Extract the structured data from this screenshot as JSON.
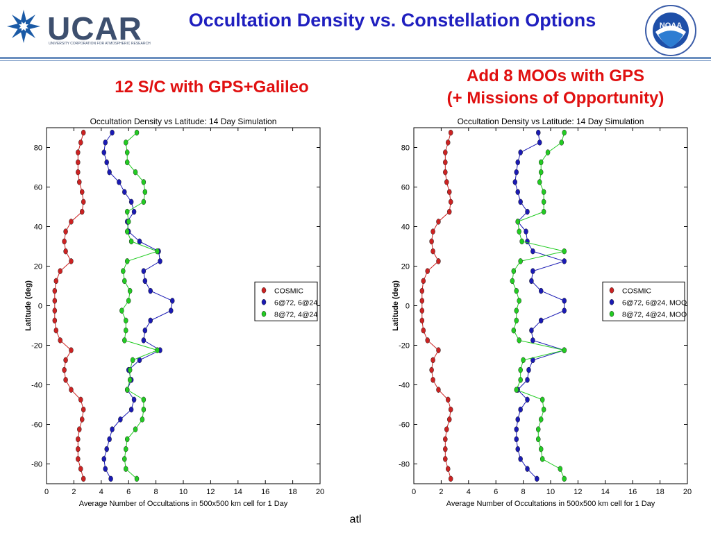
{
  "header": {
    "ucar_logo_text": "UCAR",
    "ucar_logo_subtext": "UNIVERSITY CORPORATION FOR ATMOSPHERIC RESEARCH",
    "title": "Occultation Density vs. Constellation Options",
    "noaa_logo_text": "NOAA",
    "colors": {
      "title": "#1f1fbf",
      "subtitle": "#e01010",
      "rule": "#6b8fbf"
    }
  },
  "subtitles": {
    "left": "12 S/C with GPS+Galileo",
    "right_line1": "Add 8 MOOs with GPS",
    "right_line2": "(+ Missions of Opportunity)"
  },
  "footer": {
    "text": "atl"
  },
  "chart_data": [
    {
      "type": "line",
      "title": "Occultation Density vs Latitude: 14 Day Simulation",
      "xlabel": "Average Number of Occultations in 500x500 km cell for 1 Day",
      "ylabel": "Latitude (deg)",
      "xlim": [
        0,
        20
      ],
      "ylim": [
        -90,
        90
      ],
      "xticks": [
        0,
        2,
        4,
        6,
        8,
        10,
        12,
        14,
        16,
        18,
        20
      ],
      "yticks": [
        -80,
        -60,
        -40,
        -20,
        0,
        20,
        40,
        60,
        80
      ],
      "legend_position": "right",
      "latitudes": [
        87.5,
        82.5,
        77.5,
        72.5,
        67.5,
        62.5,
        57.5,
        52.5,
        47.5,
        42.5,
        37.5,
        32.5,
        27.5,
        22.5,
        17.5,
        12.5,
        7.5,
        2.5,
        -2.5,
        -7.5,
        -12.5,
        -17.5,
        -22.5,
        -27.5,
        -32.5,
        -37.5,
        -42.5,
        -47.5,
        -52.5,
        -57.5,
        -62.5,
        -67.5,
        -72.5,
        -77.5,
        -82.5,
        -87.5
      ],
      "series": [
        {
          "name": "COSMIC",
          "color": "#cc2222",
          "values": [
            2.7,
            2.5,
            2.3,
            2.3,
            2.3,
            2.4,
            2.6,
            2.7,
            2.6,
            1.8,
            1.4,
            1.3,
            1.4,
            1.8,
            1.0,
            0.7,
            0.6,
            0.6,
            0.6,
            0.6,
            0.7,
            1.0,
            1.8,
            1.4,
            1.3,
            1.4,
            1.8,
            2.5,
            2.7,
            2.6,
            2.4,
            2.3,
            2.3,
            2.3,
            2.5,
            2.7
          ]
        },
        {
          "name": "6@72, 6@24",
          "color": "#1a1ab4",
          "values": [
            4.8,
            4.3,
            4.2,
            4.4,
            4.6,
            5.3,
            5.7,
            6.2,
            6.4,
            5.9,
            6.0,
            6.8,
            8.2,
            8.3,
            7.1,
            7.2,
            7.6,
            9.2,
            9.1,
            7.6,
            7.2,
            7.1,
            8.3,
            6.8,
            6.0,
            6.2,
            5.9,
            6.4,
            6.2,
            5.4,
            4.8,
            4.6,
            4.4,
            4.2,
            4.3,
            4.7
          ]
        },
        {
          "name": "8@72, 4@24",
          "color": "#22cc22",
          "values": [
            6.6,
            5.8,
            5.9,
            5.9,
            6.5,
            7.1,
            7.2,
            7.1,
            5.9,
            6.0,
            5.9,
            6.2,
            8.1,
            5.9,
            5.6,
            5.7,
            6.1,
            6.0,
            5.5,
            5.8,
            5.8,
            5.7,
            8.1,
            6.3,
            6.1,
            6.1,
            5.9,
            7.1,
            7.1,
            7.0,
            6.5,
            5.9,
            5.8,
            5.7,
            5.8,
            6.6
          ]
        }
      ]
    },
    {
      "type": "line",
      "title": "Occultation Density vs Latitude: 14 Day Simulation",
      "xlabel": "Average Number of Occultations in 500x500 km cell for 1 Day",
      "ylabel": "Latitude (deg)",
      "xlim": [
        0,
        20
      ],
      "ylim": [
        -90,
        90
      ],
      "xticks": [
        0,
        2,
        4,
        6,
        8,
        10,
        12,
        14,
        16,
        18,
        20
      ],
      "yticks": [
        -80,
        -60,
        -40,
        -20,
        0,
        20,
        40,
        60,
        80
      ],
      "legend_position": "right",
      "latitudes": [
        87.5,
        82.5,
        77.5,
        72.5,
        67.5,
        62.5,
        57.5,
        52.5,
        47.5,
        42.5,
        37.5,
        32.5,
        27.5,
        22.5,
        17.5,
        12.5,
        7.5,
        2.5,
        -2.5,
        -7.5,
        -12.5,
        -17.5,
        -22.5,
        -27.5,
        -32.5,
        -37.5,
        -42.5,
        -47.5,
        -52.5,
        -57.5,
        -62.5,
        -67.5,
        -72.5,
        -77.5,
        -82.5,
        -87.5
      ],
      "series": [
        {
          "name": "COSMIC",
          "color": "#cc2222",
          "values": [
            2.7,
            2.5,
            2.3,
            2.3,
            2.3,
            2.4,
            2.6,
            2.7,
            2.6,
            1.8,
            1.4,
            1.3,
            1.4,
            1.8,
            1.0,
            0.7,
            0.6,
            0.6,
            0.6,
            0.6,
            0.7,
            1.0,
            1.8,
            1.4,
            1.3,
            1.4,
            1.8,
            2.5,
            2.7,
            2.6,
            2.4,
            2.3,
            2.3,
            2.3,
            2.5,
            2.7
          ]
        },
        {
          "name": "6@72, 6@24, MOO",
          "color": "#1a1ab4",
          "values": [
            9.1,
            9.2,
            7.8,
            7.6,
            7.5,
            7.4,
            7.6,
            7.8,
            8.3,
            7.6,
            8.2,
            8.3,
            8.7,
            11.0,
            8.7,
            8.6,
            9.3,
            11.0,
            11.0,
            9.3,
            8.6,
            8.7,
            11.0,
            8.7,
            8.4,
            8.3,
            7.6,
            8.3,
            7.8,
            7.6,
            7.5,
            7.5,
            7.6,
            7.8,
            8.3,
            9.0
          ]
        },
        {
          "name": "8@72, 4@24, MOO",
          "color": "#22cc22",
          "values": [
            11.0,
            10.8,
            9.8,
            9.3,
            9.3,
            9.2,
            9.5,
            9.5,
            9.5,
            7.6,
            7.7,
            7.9,
            11.0,
            7.8,
            7.3,
            7.2,
            7.5,
            7.7,
            7.5,
            7.5,
            7.3,
            7.7,
            11.0,
            8.0,
            7.8,
            7.8,
            7.5,
            9.4,
            9.5,
            9.3,
            9.1,
            9.1,
            9.3,
            9.4,
            10.7,
            11.0
          ]
        }
      ]
    }
  ]
}
